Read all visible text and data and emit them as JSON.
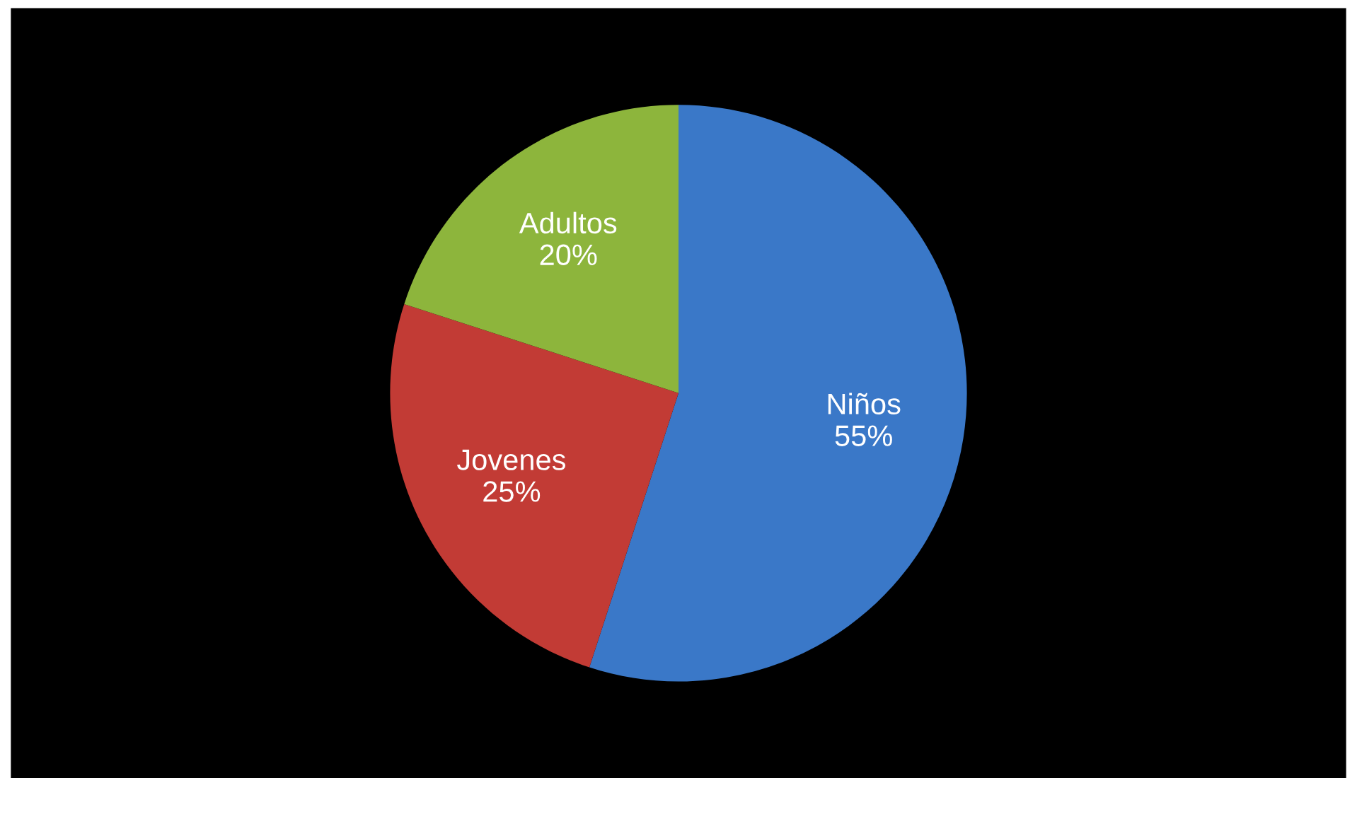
{
  "chart_data": {
    "type": "pie",
    "categories": [
      "Niños",
      "Jovenes",
      "Adultos"
    ],
    "values": [
      55,
      25,
      20
    ],
    "colors": [
      "#3a78c8",
      "#c23b35",
      "#8db53c"
    ],
    "value_labels": [
      "55%",
      "25%",
      "20%"
    ],
    "legend": false
  }
}
